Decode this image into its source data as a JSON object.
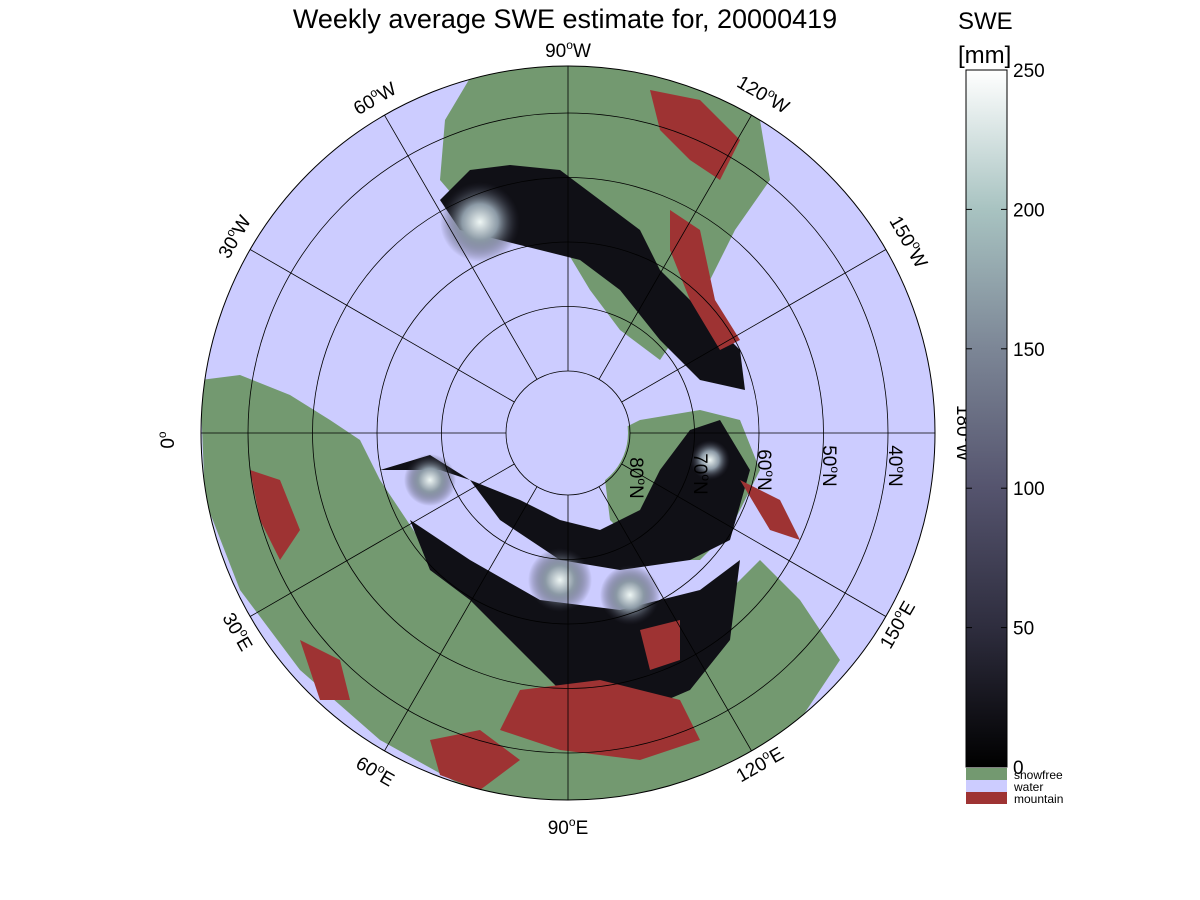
{
  "title": "Weekly average SWE estimate for, 20000419",
  "colorbar": {
    "title_line1": "SWE",
    "title_line2": "[mm]",
    "min": 0,
    "max": 250,
    "ticks": [
      "0",
      "50",
      "100",
      "150",
      "200",
      "250"
    ],
    "gradient": [
      "#000000",
      "#2e2d3e",
      "#55546e",
      "#7c8696",
      "#a8c3c1",
      "#ffffff"
    ]
  },
  "legend": [
    {
      "label": "snowfree",
      "color": "#739970"
    },
    {
      "label": "water",
      "color": "#ccccff"
    },
    {
      "label": "mountain",
      "color": "#9e3333"
    }
  ],
  "longitude_labels": [
    {
      "deg": "90",
      "hemi": "W"
    },
    {
      "deg": "120",
      "hemi": "W"
    },
    {
      "deg": "150",
      "hemi": "W"
    },
    {
      "deg": "180",
      "hemi": "W"
    },
    {
      "deg": "150",
      "hemi": "E"
    },
    {
      "deg": "120",
      "hemi": "E"
    },
    {
      "deg": "90",
      "hemi": "E"
    },
    {
      "deg": "60",
      "hemi": "E"
    },
    {
      "deg": "30",
      "hemi": "E"
    },
    {
      "deg": "0",
      "hemi": ""
    },
    {
      "deg": "30",
      "hemi": "W"
    },
    {
      "deg": "60",
      "hemi": "W"
    }
  ],
  "latitude_labels": [
    {
      "deg": "80",
      "hemi": "N"
    },
    {
      "deg": "70",
      "hemi": "N"
    },
    {
      "deg": "60",
      "hemi": "N"
    },
    {
      "deg": "50",
      "hemi": "N"
    },
    {
      "deg": "40",
      "hemi": "N"
    }
  ],
  "colors": {
    "water": "#ccccff",
    "snowfree": "#739970",
    "mountain": "#9e3333",
    "snow_dark": "#101016",
    "snow_bright": "#d8ebe8"
  }
}
